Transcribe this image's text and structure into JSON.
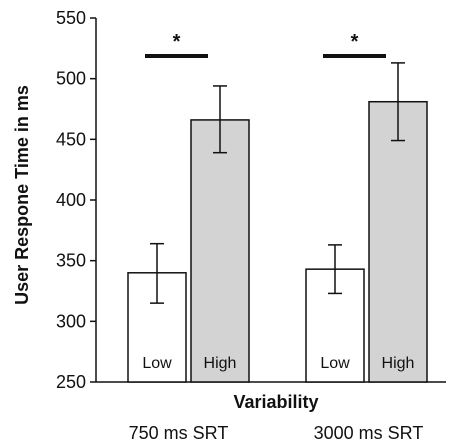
{
  "chart_data": {
    "type": "bar",
    "ylabel": "User Respone Time in ms",
    "xlabel": "Variability",
    "ylim": [
      250,
      550
    ],
    "yticks": [
      "250",
      "300",
      "350",
      "400",
      "450",
      "500",
      "550"
    ],
    "grid": false,
    "groups": [
      {
        "label": "750 ms SRT",
        "bars": [
          {
            "label": "Low",
            "value": 340,
            "error_low": 315,
            "error_high": 364
          },
          {
            "label": "High",
            "value": 466,
            "error_low": 439,
            "error_high": 494
          }
        ],
        "significance": "*"
      },
      {
        "label": "3000 ms SRT",
        "bars": [
          {
            "label": "Low",
            "value": 343,
            "error_low": 323,
            "error_high": 363
          },
          {
            "label": "High",
            "value": 481,
            "error_low": 449,
            "error_high": 513
          }
        ],
        "significance": "*"
      }
    ],
    "colors": {
      "Low": "#ffffff",
      "High": "#d3d3d3",
      "stroke": "#111111"
    }
  }
}
